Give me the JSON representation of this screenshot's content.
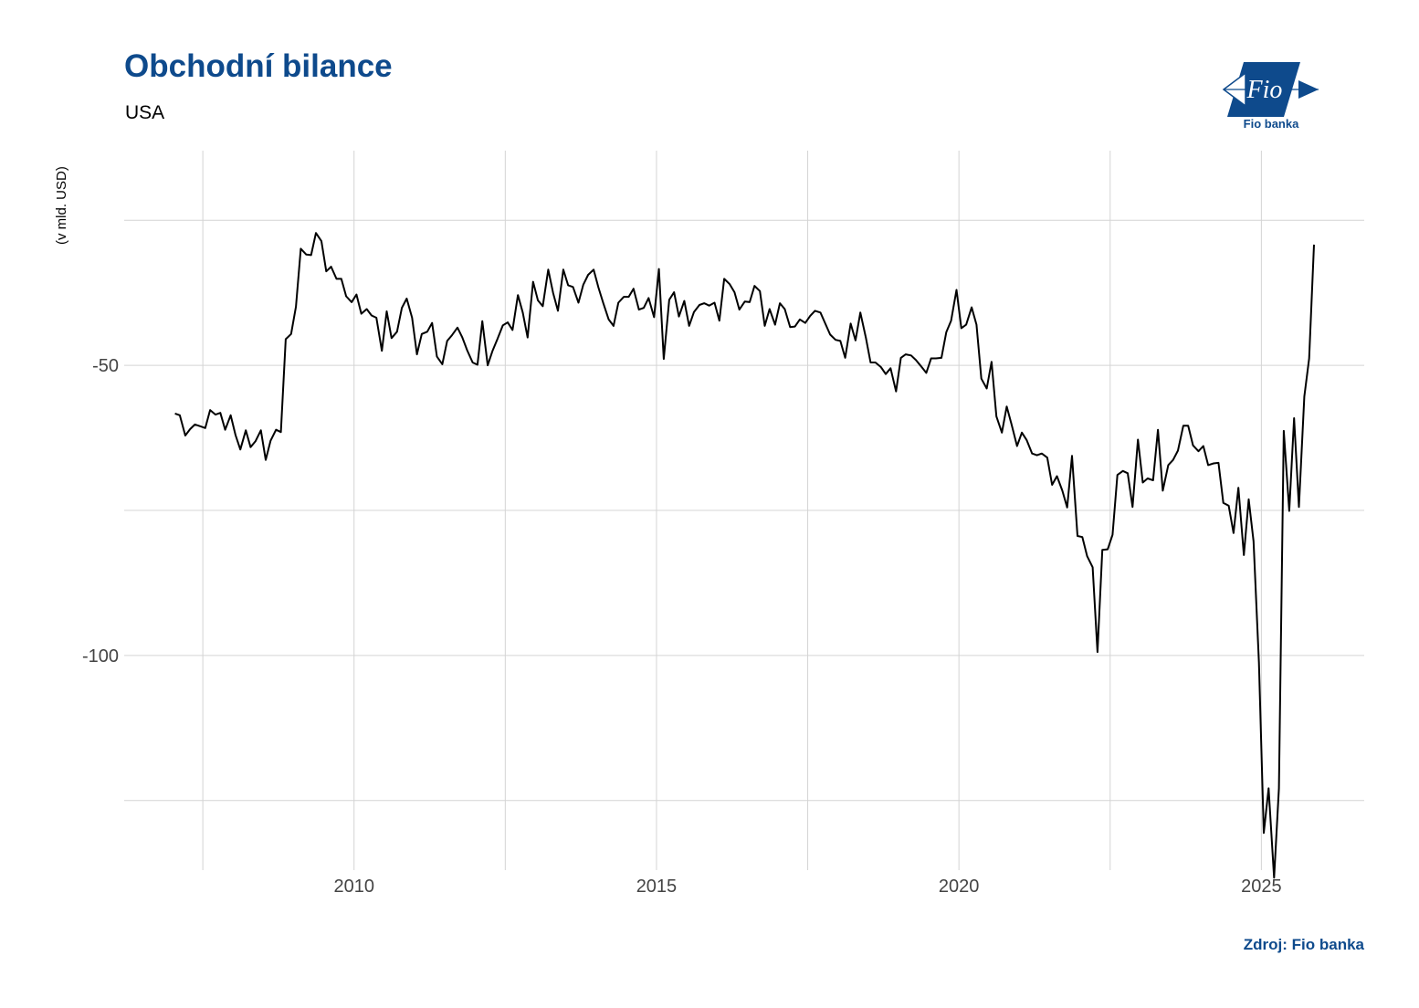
{
  "header": {
    "title": "Obchodní bilance",
    "subtitle": "USA",
    "ylabel": "(v mld. USD)",
    "source": "Zdroj: Fio banka"
  },
  "logo": {
    "text": "Fio banka",
    "mark_text": "Fio",
    "color": "#0e4a8c"
  },
  "chart_data": {
    "type": "line",
    "title": "Obchodní bilance",
    "subtitle": "USA",
    "ylabel": "(v mld. USD)",
    "xlabel": "",
    "xlim": [
      2006.2,
      2026.7
    ],
    "ylim": [
      -137,
      -13
    ],
    "x_ticks": [
      2010,
      2015,
      2020,
      2025
    ],
    "x_minor_gridlines": [
      2007.5,
      2012.5,
      2017.5,
      2022.5
    ],
    "y_ticks": [
      -50,
      -100
    ],
    "y_tick_labels": [
      "-50",
      "-100"
    ],
    "y_minor_gridlines": [
      -25,
      -75,
      -125
    ],
    "grid": true,
    "line_color": "#000000",
    "series": [
      {
        "x": [
          2007.04,
          2007.12,
          2007.21,
          2007.29,
          2007.37,
          2007.46,
          2007.54,
          2007.62,
          2007.71,
          2007.79,
          2007.87,
          2007.96,
          2008.04,
          2008.12,
          2008.21,
          2008.29,
          2008.37,
          2008.46,
          2008.54,
          2008.62,
          2008.71,
          2008.79,
          2008.87,
          2008.96,
          2009.04,
          2009.12,
          2009.21,
          2009.29,
          2009.37,
          2009.46,
          2009.54,
          2009.62,
          2009.71,
          2009.79,
          2009.87,
          2009.96,
          2010.04,
          2010.12,
          2010.21,
          2010.29,
          2010.37,
          2010.46,
          2010.54,
          2010.62,
          2010.71,
          2010.79,
          2010.87,
          2010.96,
          2011.04,
          2011.12,
          2011.21,
          2011.29,
          2011.37,
          2011.46,
          2011.54,
          2011.62,
          2011.71,
          2011.79,
          2011.87,
          2011.96,
          2012.04,
          2012.12,
          2012.21,
          2012.29,
          2012.37,
          2012.46,
          2012.54,
          2012.62,
          2012.71,
          2012.79,
          2012.87,
          2012.96,
          2013.04,
          2013.12,
          2013.21,
          2013.29,
          2013.37,
          2013.46,
          2013.54,
          2013.62,
          2013.71,
          2013.79,
          2013.87,
          2013.96,
          2014.04,
          2014.12,
          2014.21,
          2014.29,
          2014.37,
          2014.46,
          2014.54,
          2014.62,
          2014.71,
          2014.79,
          2014.87,
          2014.96,
          2015.04,
          2015.12,
          2015.21,
          2015.29,
          2015.37,
          2015.46,
          2015.54,
          2015.62,
          2015.71,
          2015.79,
          2015.87,
          2015.96,
          2016.04,
          2016.12,
          2016.21,
          2016.29,
          2016.37,
          2016.46,
          2016.54,
          2016.62,
          2016.71,
          2016.79,
          2016.87,
          2016.96,
          2017.04,
          2017.12,
          2017.21,
          2017.29,
          2017.37,
          2017.46,
          2017.54,
          2017.62,
          2017.71,
          2017.79,
          2017.87,
          2017.96,
          2018.04,
          2018.12,
          2018.21,
          2018.29,
          2018.37,
          2018.46,
          2018.54,
          2018.62,
          2018.71,
          2018.79,
          2018.87,
          2018.96,
          2019.04,
          2019.12,
          2019.21,
          2019.29,
          2019.37,
          2019.46,
          2019.54,
          2019.62,
          2019.71,
          2019.79,
          2019.87,
          2019.96,
          2020.04,
          2020.12,
          2020.21,
          2020.29,
          2020.37,
          2020.46,
          2020.54,
          2020.62,
          2020.71,
          2020.79,
          2020.87,
          2020.96,
          2021.04,
          2021.12,
          2021.21,
          2021.29,
          2021.37,
          2021.46,
          2021.54,
          2021.62,
          2021.71,
          2021.79,
          2021.87,
          2021.96,
          2022.04,
          2022.12,
          2022.21,
          2022.29,
          2022.37,
          2022.46,
          2022.54,
          2022.62,
          2022.71,
          2022.79,
          2022.87,
          2022.96,
          2023.04,
          2023.12,
          2023.21,
          2023.29,
          2023.37,
          2023.46,
          2023.54,
          2023.62,
          2023.71,
          2023.79,
          2023.87,
          2023.96,
          2024.04,
          2024.12,
          2024.21,
          2024.29,
          2024.37,
          2024.46,
          2024.54,
          2024.62,
          2024.71,
          2024.79,
          2024.87,
          2024.96,
          2025.04,
          2025.12,
          2025.21,
          2025.29,
          2025.37,
          2025.46,
          2025.54,
          2025.62,
          2025.71,
          2025.79,
          2025.87
        ],
        "values": [
          -58.3,
          -58.6,
          -62.1,
          -61.0,
          -60.2,
          -60.5,
          -60.8,
          -57.7,
          -58.5,
          -58.2,
          -61.1,
          -58.6,
          -62.0,
          -64.5,
          -61.2,
          -64.1,
          -63.1,
          -61.2,
          -66.3,
          -63.0,
          -61.1,
          -61.5,
          -45.5,
          -44.6,
          -39.9,
          -29.9,
          -30.9,
          -31.0,
          -27.2,
          -28.6,
          -33.8,
          -33.0,
          -35.1,
          -35.1,
          -38.1,
          -39.1,
          -37.8,
          -41.1,
          -40.3,
          -41.4,
          -41.8,
          -47.5,
          -40.7,
          -45.3,
          -44.2,
          -40.1,
          -38.5,
          -41.8,
          -48.1,
          -44.6,
          -44.2,
          -42.7,
          -48.5,
          -49.8,
          -45.8,
          -44.8,
          -43.5,
          -45.2,
          -47.4,
          -49.5,
          -49.9,
          -42.4,
          -50.0,
          -47.5,
          -45.5,
          -43.1,
          -42.6,
          -43.9,
          -37.9,
          -40.9,
          -45.2,
          -35.6,
          -38.8,
          -39.8,
          -33.5,
          -37.5,
          -40.6,
          -33.5,
          -36.2,
          -36.5,
          -39.2,
          -36.1,
          -34.4,
          -33.5,
          -36.6,
          -39.3,
          -42.1,
          -43.2,
          -39.2,
          -38.2,
          -38.2,
          -36.8,
          -40.4,
          -40.1,
          -38.4,
          -41.7,
          -33.4,
          -48.9,
          -38.7,
          -37.4,
          -41.6,
          -38.9,
          -43.2,
          -40.8,
          -39.6,
          -39.3,
          -39.7,
          -39.2,
          -42.3,
          -35.1,
          -36.0,
          -37.4,
          -40.4,
          -39.0,
          -39.1,
          -36.3,
          -37.2,
          -43.2,
          -40.3,
          -43.0,
          -39.3,
          -40.3,
          -43.4,
          -43.3,
          -42.1,
          -42.7,
          -41.5,
          -40.6,
          -40.9,
          -42.8,
          -44.7,
          -45.6,
          -45.8,
          -48.7,
          -42.8,
          -45.7,
          -40.9,
          -45.2,
          -49.5,
          -49.5,
          -50.3,
          -51.5,
          -50.5,
          -54.5,
          -48.7,
          -48.1,
          -48.3,
          -49.1,
          -50.1,
          -51.3,
          -48.8,
          -48.8,
          -48.7,
          -44.3,
          -42.3,
          -37.0,
          -43.6,
          -43.0,
          -40.0,
          -43.0,
          -52.3,
          -54.0,
          -49.4,
          -58.8,
          -61.6,
          -57.1,
          -60.2,
          -63.9,
          -61.6,
          -62.9,
          -65.2,
          -65.5,
          -65.2,
          -65.9,
          -70.6,
          -69.1,
          -71.6,
          -74.5,
          -65.6,
          -79.4,
          -79.6,
          -82.9,
          -84.8,
          -99.4,
          -81.8,
          -81.7,
          -79.2,
          -68.9,
          -68.2,
          -68.6,
          -74.4,
          -62.8,
          -70.2,
          -69.5,
          -69.8,
          -61.1,
          -71.6,
          -67.2,
          -66.3,
          -64.7,
          -60.4,
          -60.4,
          -63.8,
          -64.8,
          -63.9,
          -67.2,
          -66.9,
          -66.8,
          -73.7,
          -74.2,
          -78.9,
          -71.1,
          -82.7,
          -73.1,
          -80.3,
          -101.2,
          -130.6,
          -122.9,
          -138.3,
          -122.9,
          -61.3,
          -75.1,
          -59.1,
          -74.4,
          -55.4,
          -48.8,
          -29.2
        ]
      }
    ]
  }
}
